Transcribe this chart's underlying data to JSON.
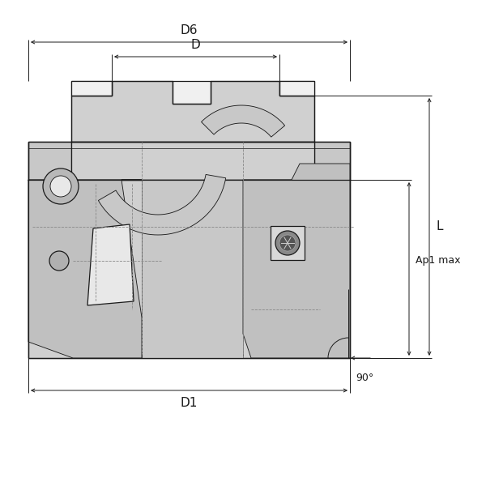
{
  "bg_color": "#ffffff",
  "line_color": "#1a1a1a",
  "body_fill": "#d0d0d0",
  "body_fill2": "#bebebe",
  "body_fill3": "#c8c8c8",
  "dashed_color": "#888888",
  "fig_width": 6.0,
  "fig_height": 6.0,
  "labels": {
    "D6": "D6",
    "D": "D",
    "D1": "D1",
    "L": "L",
    "Ap1max": "Ap1 max",
    "angle": "90°"
  }
}
